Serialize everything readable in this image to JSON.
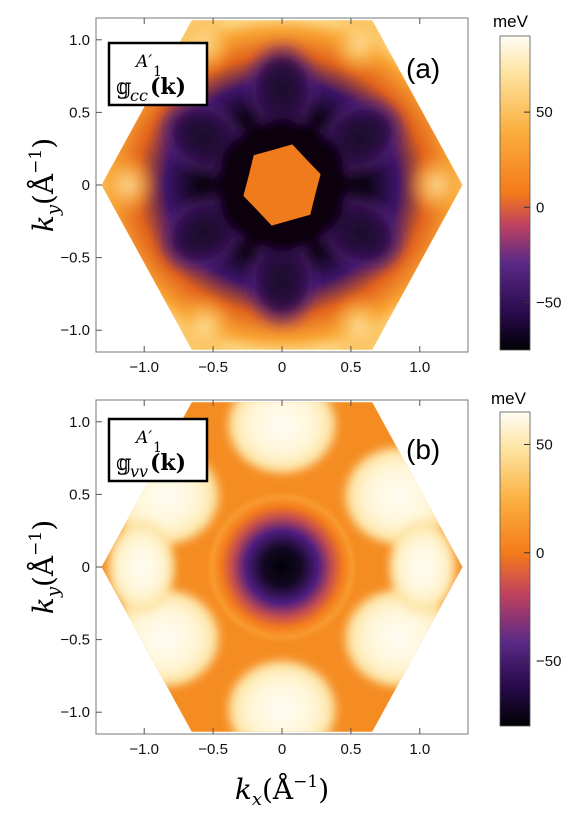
{
  "chart_data": [
    {
      "type": "heatmap",
      "panel_label": "(a)",
      "legend_label": {
        "symbol": "𝕘",
        "subscript": "cc",
        "superscript": "A′",
        "superscript_index": "1",
        "argument": "(k)"
      },
      "xlabel": {
        "symbol": "k",
        "subscript": "x",
        "unit": "(Å",
        "exponent": "−1",
        "close": ")"
      },
      "ylabel": {
        "symbol": "k",
        "subscript": "y",
        "unit": "(Å",
        "exponent": "−1",
        "close": ")"
      },
      "xlim": [
        -1.35,
        1.35
      ],
      "ylim": [
        -1.15,
        1.15
      ],
      "x_ticks": [
        "−1.0",
        "−0.5",
        "0",
        "0.5",
        "1.0"
      ],
      "y_ticks": [
        "1.0",
        "0.5",
        "0",
        "−0.5",
        "−1.0"
      ],
      "colorbar": {
        "unit": "meV",
        "range": [
          -75,
          90
        ],
        "ticks": [
          "50",
          "0",
          "−50"
        ]
      },
      "grid": false,
      "region": "hexagonal Brillouin zone, pointy vertices along kx"
    },
    {
      "type": "heatmap",
      "panel_label": "(b)",
      "legend_label": {
        "symbol": "𝕘",
        "subscript": "vv",
        "superscript": "A′",
        "superscript_index": "1",
        "argument": "(k)"
      },
      "xlabel": {
        "symbol": "k",
        "subscript": "x",
        "unit": "(Å",
        "exponent": "−1",
        "close": ")"
      },
      "ylabel": {
        "symbol": "k",
        "subscript": "y",
        "unit": "(Å",
        "exponent": "−1",
        "close": ")"
      },
      "xlim": [
        -1.35,
        1.35
      ],
      "ylim": [
        -1.15,
        1.15
      ],
      "x_ticks": [
        "−1.0",
        "−0.5",
        "0",
        "0.5",
        "1.0"
      ],
      "y_ticks": [
        "1.0",
        "0.5",
        "0",
        "−0.5",
        "−1.0"
      ],
      "colorbar": {
        "unit": "meV",
        "range": [
          -80,
          65
        ],
        "ticks": [
          "50",
          "0",
          "−50"
        ]
      },
      "grid": false,
      "region": "hexagonal Brillouin zone, pointy vertices along kx"
    }
  ],
  "colors": {
    "scale": [
      "#000004",
      "#3b0f70",
      "#8c2981",
      "#de4968",
      "#f57d15",
      "#fbb340",
      "#fde8a8",
      "#fffdf4"
    ]
  }
}
